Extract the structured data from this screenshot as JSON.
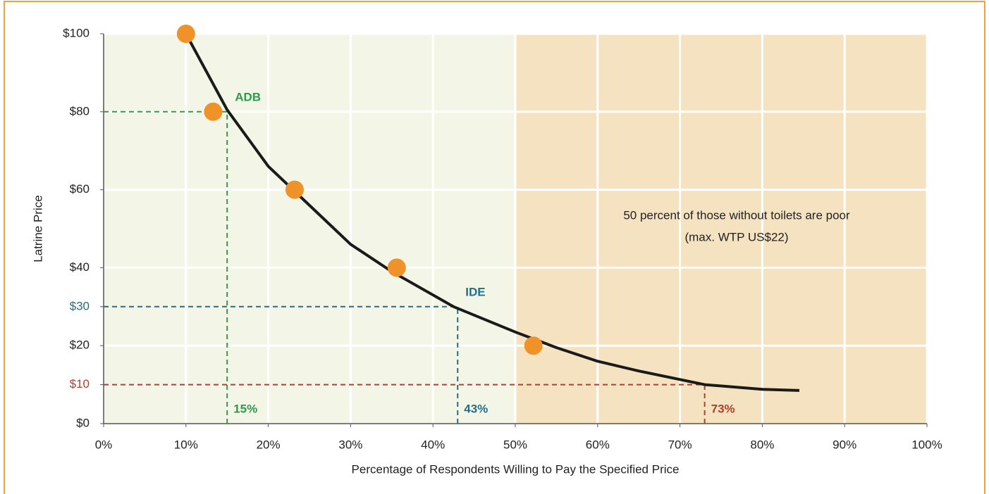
{
  "chart_data": {
    "type": "scatter",
    "x_label": "Percentage of Respondents Willing to Pay the Specified Price",
    "y_label": "Latrine Price",
    "xlim": [
      0,
      100
    ],
    "ylim": [
      0,
      100
    ],
    "xticks": [
      {
        "value": 0,
        "label": "0%"
      },
      {
        "value": 10,
        "label": "10%"
      },
      {
        "value": 20,
        "label": "20%"
      },
      {
        "value": 30,
        "label": "30%"
      },
      {
        "value": 40,
        "label": "40%"
      },
      {
        "value": 50,
        "label": "50%"
      },
      {
        "value": 60,
        "label": "60%"
      },
      {
        "value": 70,
        "label": "70%"
      },
      {
        "value": 80,
        "label": "80%"
      },
      {
        "value": 90,
        "label": "90%"
      },
      {
        "value": 100,
        "label": "100%"
      }
    ],
    "yticks": [
      {
        "value": 0,
        "label": "$0"
      },
      {
        "value": 10,
        "label": "$10"
      },
      {
        "value": 20,
        "label": "$20"
      },
      {
        "value": 30,
        "label": "$30"
      },
      {
        "value": 40,
        "label": "$40"
      },
      {
        "value": 60,
        "label": "$60"
      },
      {
        "value": 80,
        "label": "$80"
      },
      {
        "value": 100,
        "label": "$100"
      }
    ],
    "ytick_colors": [
      "#222222",
      "#b0402a",
      "#222222",
      "#1f6f8b",
      "#222222",
      "#222222",
      "#222222",
      "#222222"
    ],
    "grid_y": [
      20,
      40,
      60,
      80,
      100
    ],
    "grid": true,
    "regions": [
      {
        "x": [
          0,
          50
        ],
        "color": "#f3f6e7"
      },
      {
        "x": [
          50,
          100
        ],
        "color": "#f5e2c1"
      }
    ],
    "points": {
      "color": "#f0922a",
      "x": [
        10,
        13.3,
        23.2,
        35.6,
        52.2
      ],
      "y": [
        100,
        80,
        60,
        40,
        20
      ]
    },
    "curve": {
      "color": "#1a1a1a",
      "x": [
        10,
        15,
        20,
        25,
        30,
        35,
        42.5,
        50,
        55,
        60,
        65,
        73,
        80,
        84.5
      ],
      "y": [
        100,
        80.5,
        66,
        56,
        46,
        39,
        30,
        23.5,
        19.5,
        16,
        13.5,
        10,
        8.8,
        8.5
      ]
    },
    "reference_lines": [
      {
        "name": "ADB",
        "x": 15,
        "y": 80,
        "x_label": "15%",
        "color": "#2e9a4a"
      },
      {
        "name": "IDE",
        "x": 43,
        "y": 30,
        "x_label": "43%",
        "color": "#1f6f8b"
      },
      {
        "x": 73,
        "y": 10,
        "x_label": "73%",
        "color": "#b0402a"
      }
    ],
    "annotation": [
      "50 percent of those without toilets are poor",
      "(max. WTP US$22)"
    ]
  }
}
